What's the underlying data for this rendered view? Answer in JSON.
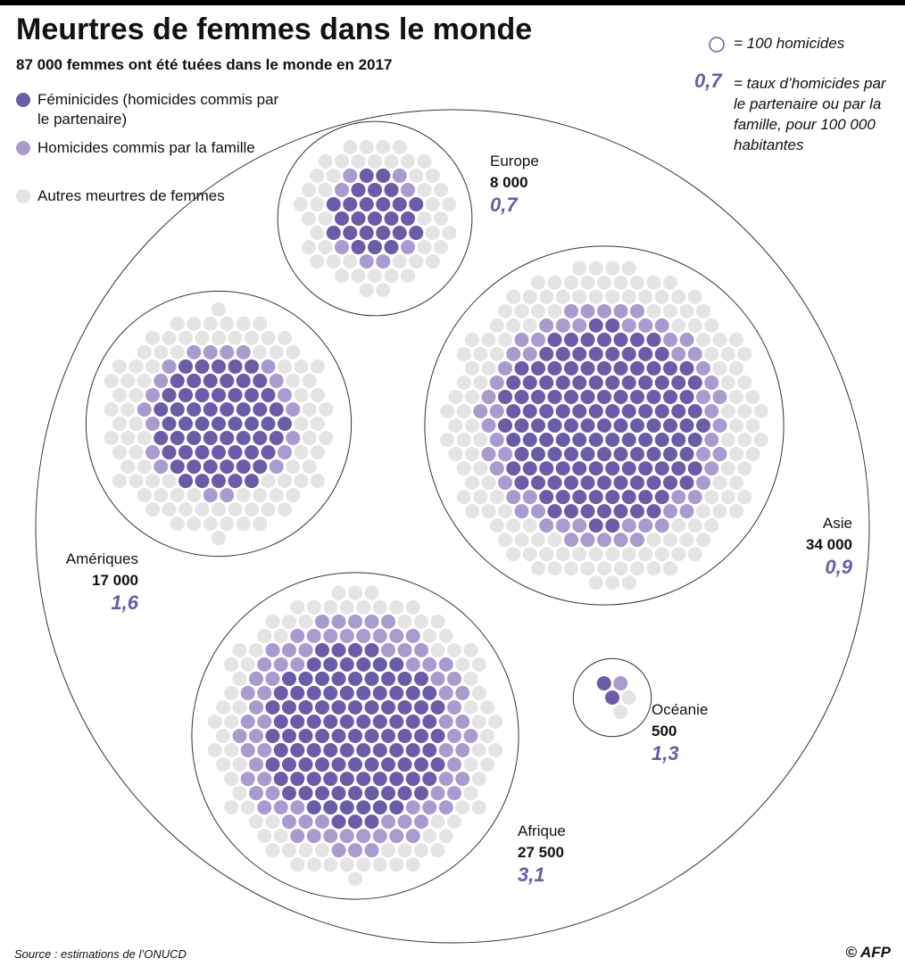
{
  "chart_data": {
    "type": "dot",
    "title": "Meurtres de femmes dans le monde",
    "subtitle": "87 000 femmes ont été tuées dans le monde en 2017",
    "unit": 100,
    "unit_label": "= 100 homicides",
    "rate_example": "0,7",
    "rate_label": "= taux d’homicides par le partenaire ou par la famille, pour 100 000 habitantes",
    "categories": [
      "Europe",
      "Amériques",
      "Asie",
      "Afrique",
      "Océanie"
    ],
    "totals": [
      8000,
      17000,
      34000,
      27500,
      500
    ],
    "totals_labels": [
      "8 000",
      "17 000",
      "34 000",
      "27 500",
      "500"
    ],
    "rates": [
      "0,7",
      "1,6",
      "0,9",
      "3,1",
      "1,3"
    ],
    "rate_color": "#6b5ba8",
    "series": [
      {
        "name": "Féminicides (homicides commis par le partenaire)",
        "color": "#6b5ba8",
        "values": [
          2500,
          6000,
          14000,
          11000,
          200
        ]
      },
      {
        "name": "Homicides commis par la famille",
        "color": "#a99bd0",
        "values": [
          800,
          2000,
          6000,
          8000,
          100
        ]
      },
      {
        "name": "Autres meurtres de femmes",
        "color": "#e4e4e4",
        "values": [
          4700,
          9000,
          14000,
          8500,
          200
        ]
      }
    ],
    "source": "Source : estimations de l’ONUCD",
    "credit": "© AFP"
  }
}
